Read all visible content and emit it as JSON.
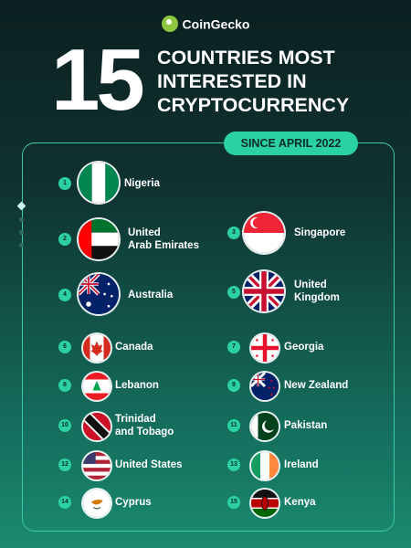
{
  "brand": {
    "name": "CoinGecko"
  },
  "headline": {
    "number": "15",
    "line1": "COUNTRIES MOST",
    "line2": "INTERESTED IN",
    "line3": "CRYPTOCURRENCY"
  },
  "badge": "SINCE APRIL 2022",
  "countries": [
    {
      "rank": "1",
      "line1": "Nigeria",
      "line2": ""
    },
    {
      "rank": "2",
      "line1": "United",
      "line2": "Arab Emirates"
    },
    {
      "rank": "3",
      "line1": "Singapore",
      "line2": ""
    },
    {
      "rank": "4",
      "line1": "Australia",
      "line2": ""
    },
    {
      "rank": "5",
      "line1": "United",
      "line2": "Kingdom"
    },
    {
      "rank": "6",
      "line1": "Canada",
      "line2": ""
    },
    {
      "rank": "7",
      "line1": "Georgia",
      "line2": ""
    },
    {
      "rank": "8",
      "line1": "Lebanon",
      "line2": ""
    },
    {
      "rank": "9",
      "line1": "New Zealand",
      "line2": ""
    },
    {
      "rank": "10",
      "line1": "Trinidad",
      "line2": "and Tobago"
    },
    {
      "rank": "11",
      "line1": "Pakistan",
      "line2": ""
    },
    {
      "rank": "12",
      "line1": "United States",
      "line2": ""
    },
    {
      "rank": "13",
      "line1": "Ireland",
      "line2": ""
    },
    {
      "rank": "14",
      "line1": "Cyprus",
      "line2": ""
    },
    {
      "rank": "15",
      "line1": "Kenya",
      "line2": ""
    }
  ]
}
